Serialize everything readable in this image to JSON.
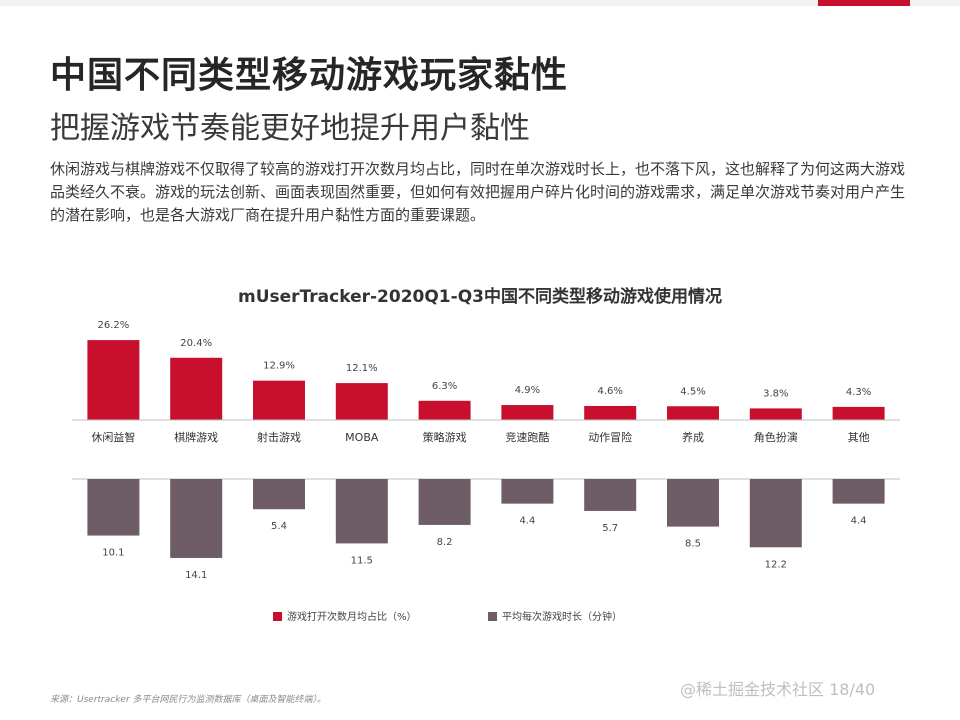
{
  "header": {
    "title": "中国不同类型移动游戏玩家黏性",
    "subtitle": "把握游戏节奏能更好地提升用户黏性"
  },
  "body": {
    "paragraph": "休闲游戏与棋牌游戏不仅取得了较高的游戏打开次数月均占比，同时在单次游戏时长上，也不落下风，这也解释了为何这两大游戏品类经久不衰。游戏的玩法创新、画面表现固然重要，但如何有效把握用户碎片化时间的游戏需求，满足单次游戏节奏对用户产生的潜在影响，也是各大游戏厂商在提升用户黏性方面的重要课题。"
  },
  "chart_data": {
    "type": "bar",
    "title": "mUserTracker-2020Q1-Q3中国不同类型移动游戏使用情况",
    "categories": [
      "休闲益智",
      "棋牌游戏",
      "射击游戏",
      "MOBA",
      "策略游戏",
      "竞速跑酷",
      "动作冒险",
      "养成",
      "角色扮演",
      "其他"
    ],
    "series": [
      {
        "name": "游戏打开次数月均占比（%）",
        "color": "#c8102e",
        "values": [
          26.2,
          20.4,
          12.9,
          12.1,
          6.3,
          4.9,
          4.6,
          4.5,
          3.8,
          4.3
        ],
        "labels": [
          "26.2%",
          "20.4%",
          "12.9%",
          "12.1%",
          "6.3%",
          "4.9%",
          "4.6%",
          "4.5%",
          "3.8%",
          "4.3%"
        ]
      },
      {
        "name": "平均每次游戏时长（分钟）",
        "color": "#6e5c66",
        "values": [
          10.1,
          14.1,
          5.4,
          11.5,
          8.2,
          4.4,
          5.7,
          8.5,
          12.2,
          4.4
        ],
        "labels": [
          "10.1",
          "14.1",
          "5.4",
          "11.5",
          "8.2",
          "4.4",
          "5.7",
          "8.5",
          "12.2",
          "4.4"
        ]
      }
    ],
    "legend_position": "bottom-center",
    "grid": false
  },
  "footer": {
    "source": "来源：Usertracker 多平台网民行为监测数据库（桌面及智能终端）。",
    "watermark": "@稀土掘金技术社区",
    "page_number": "18/40"
  }
}
